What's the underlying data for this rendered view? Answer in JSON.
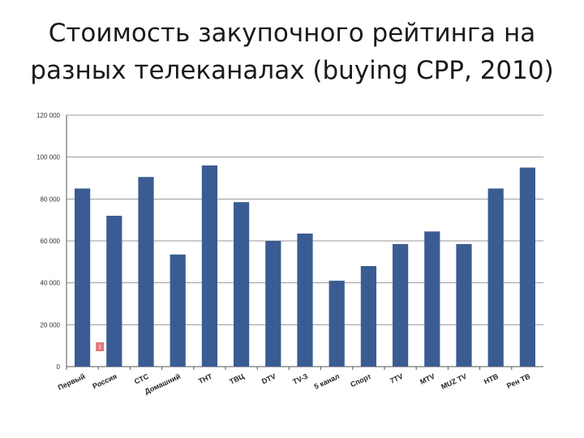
{
  "title": {
    "line1": "Стоимость закупочного рейтинга на",
    "line2": "разных телеканалах (buying CPP, 2010)"
  },
  "colors": {
    "bar": "#3a5c93",
    "grid": "#9a9a9a",
    "axis": "#555555",
    "marker": "#e07a7a"
  },
  "marker_text": "1",
  "chart_data": {
    "type": "bar",
    "categories": [
      "Первый",
      "Россия",
      "СТС",
      "Домашний",
      "ТНТ",
      "ТВЦ",
      "DTV",
      "TV-3",
      "5 канал",
      "Спорт",
      "7TV",
      "MTV",
      "MUZ TV",
      "НТВ",
      "Рен ТВ"
    ],
    "values": [
      85000,
      72000,
      90500,
      53500,
      96000,
      78500,
      60000,
      63500,
      41000,
      48000,
      58500,
      64500,
      58500,
      85000,
      95000
    ],
    "ylim": [
      0,
      120000
    ],
    "yticks": [
      0,
      20000,
      40000,
      60000,
      80000,
      100000,
      120000
    ],
    "ytick_labels": [
      "0",
      "20 000",
      "40 000",
      "60 000",
      "80 000",
      "100 000",
      "120 000"
    ],
    "grid": true
  }
}
